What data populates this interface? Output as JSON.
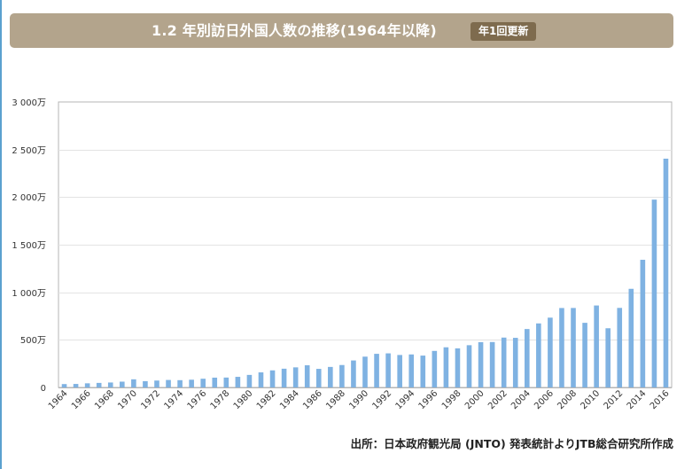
{
  "header": {
    "title": "1.2 年別訪日外国人数の推移(1964年以降)",
    "badge": "年1回更新"
  },
  "source": "出所：日本政府観光局 (JNTO) 発表統計よりJTB総合研究所作成",
  "colors": {
    "bar": "#7fb2e2",
    "grid": "#e3e3e3",
    "axis": "#b5b5b5",
    "header_bg": "#b3a48c",
    "badge_bg": "#7e6b4e"
  },
  "chart_data": {
    "type": "bar",
    "title": "年別訪日外国人数の推移",
    "xlabel": "",
    "ylabel": "",
    "ylim": [
      0,
      30000000
    ],
    "grid": true,
    "y_ticks": [
      {
        "value": 0,
        "label": "0"
      },
      {
        "value": 5000000,
        "label": "500万"
      },
      {
        "value": 10000000,
        "label": "1 000万"
      },
      {
        "value": 15000000,
        "label": "1 500万"
      },
      {
        "value": 20000000,
        "label": "2 000万"
      },
      {
        "value": 25000000,
        "label": "2 500万"
      },
      {
        "value": 30000000,
        "label": "3 000万"
      }
    ],
    "categories": [
      "1964",
      "1965",
      "1966",
      "1967",
      "1968",
      "1969",
      "1970",
      "1971",
      "1972",
      "1973",
      "1974",
      "1975",
      "1976",
      "1977",
      "1978",
      "1979",
      "1980",
      "1981",
      "1982",
      "1983",
      "1984",
      "1985",
      "1986",
      "1987",
      "1988",
      "1989",
      "1990",
      "1991",
      "1992",
      "1993",
      "1994",
      "1995",
      "1996",
      "1997",
      "1998",
      "1999",
      "2000",
      "2001",
      "2002",
      "2003",
      "2004",
      "2005",
      "2006",
      "2007",
      "2008",
      "2009",
      "2010",
      "2011",
      "2012",
      "2013",
      "2014",
      "2015",
      "2016"
    ],
    "x_tick_labels": [
      "1964",
      "1966",
      "1968",
      "1970",
      "1972",
      "1974",
      "1976",
      "1978",
      "1980",
      "1982",
      "1984",
      "1986",
      "1988",
      "1990",
      "1992",
      "1994",
      "1996",
      "1998",
      "2000",
      "2002",
      "2004",
      "2006",
      "2008",
      "2010",
      "2012",
      "2014",
      "2016"
    ],
    "values": [
      352832,
      366649,
      432937,
      476771,
      519004,
      608741,
      854419,
      660715,
      723744,
      784691,
      764246,
      811672,
      914772,
      1028140,
      1038876,
      1112606,
      1316632,
      1583043,
      1793164,
      1968461,
      2110346,
      2327047,
      1952146,
      2154864,
      2355412,
      2835064,
      3235860,
      3532651,
      3581540,
      3410447,
      3468055,
      3345274,
      3837113,
      4218208,
      4106057,
      4437863,
      4757146,
      4771555,
      5238963,
      5211725,
      6137905,
      6727926,
      7334077,
      8346969,
      8350835,
      6789658,
      8611175,
      6218752,
      8358105,
      10363904,
      13413467,
      19737409,
      24039700
    ]
  }
}
